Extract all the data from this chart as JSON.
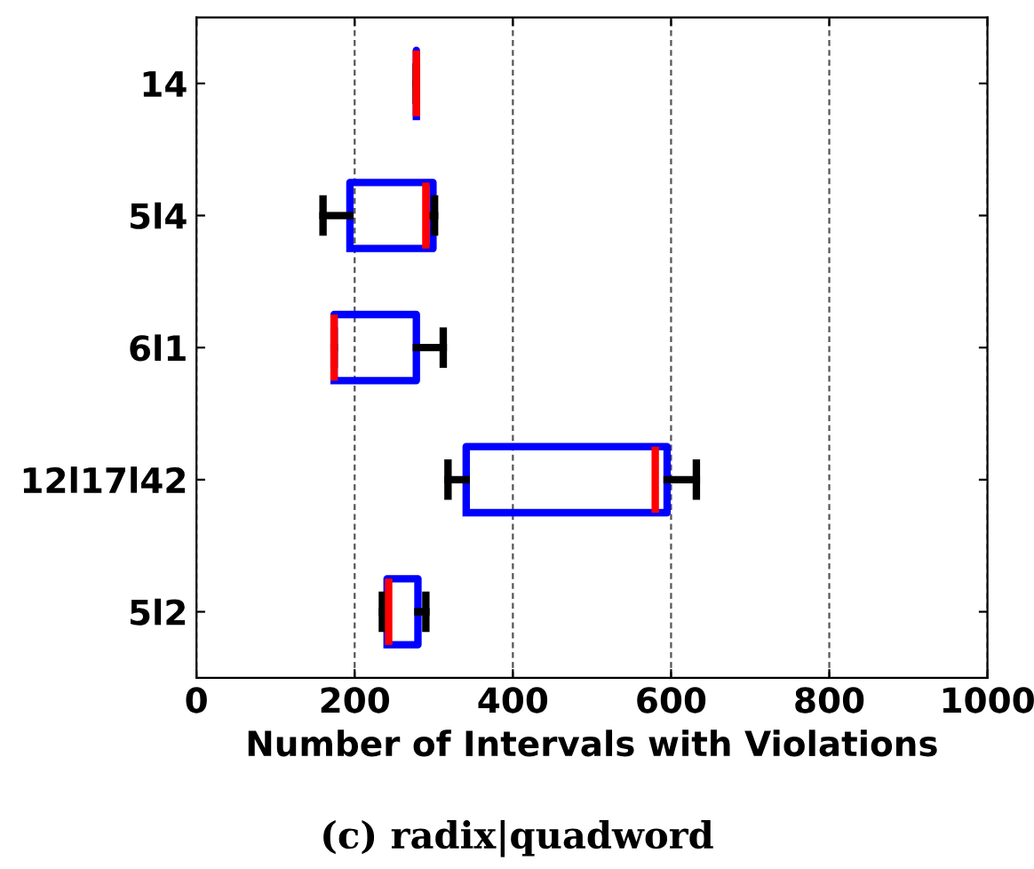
{
  "chart_data": {
    "type": "box",
    "orientation": "horizontal",
    "xlabel": "Number of Intervals with Violations",
    "categories": [
      "14",
      "5l4",
      "6l1",
      "12l17l42",
      "5l2"
    ],
    "boxes": [
      {
        "low": 278,
        "q1": 278,
        "median": 278,
        "q3": 278,
        "high": 278
      },
      {
        "low": 160,
        "q1": 194,
        "median": 290,
        "q3": 299,
        "high": 301
      },
      {
        "low": 174,
        "q1": 174,
        "median": 174,
        "q3": 278,
        "high": 312
      },
      {
        "low": 318,
        "q1": 341,
        "median": 580,
        "q3": 595,
        "high": 632
      },
      {
        "low": 235,
        "q1": 241,
        "median": 243,
        "q3": 280,
        "high": 290
      }
    ],
    "color": "#0000ff",
    "xlim": [
      0,
      1000
    ],
    "xticks": [
      0,
      200,
      400,
      600,
      800,
      1000
    ],
    "grid": "x",
    "annotations": [
      "(c) radix|quadword"
    ]
  }
}
